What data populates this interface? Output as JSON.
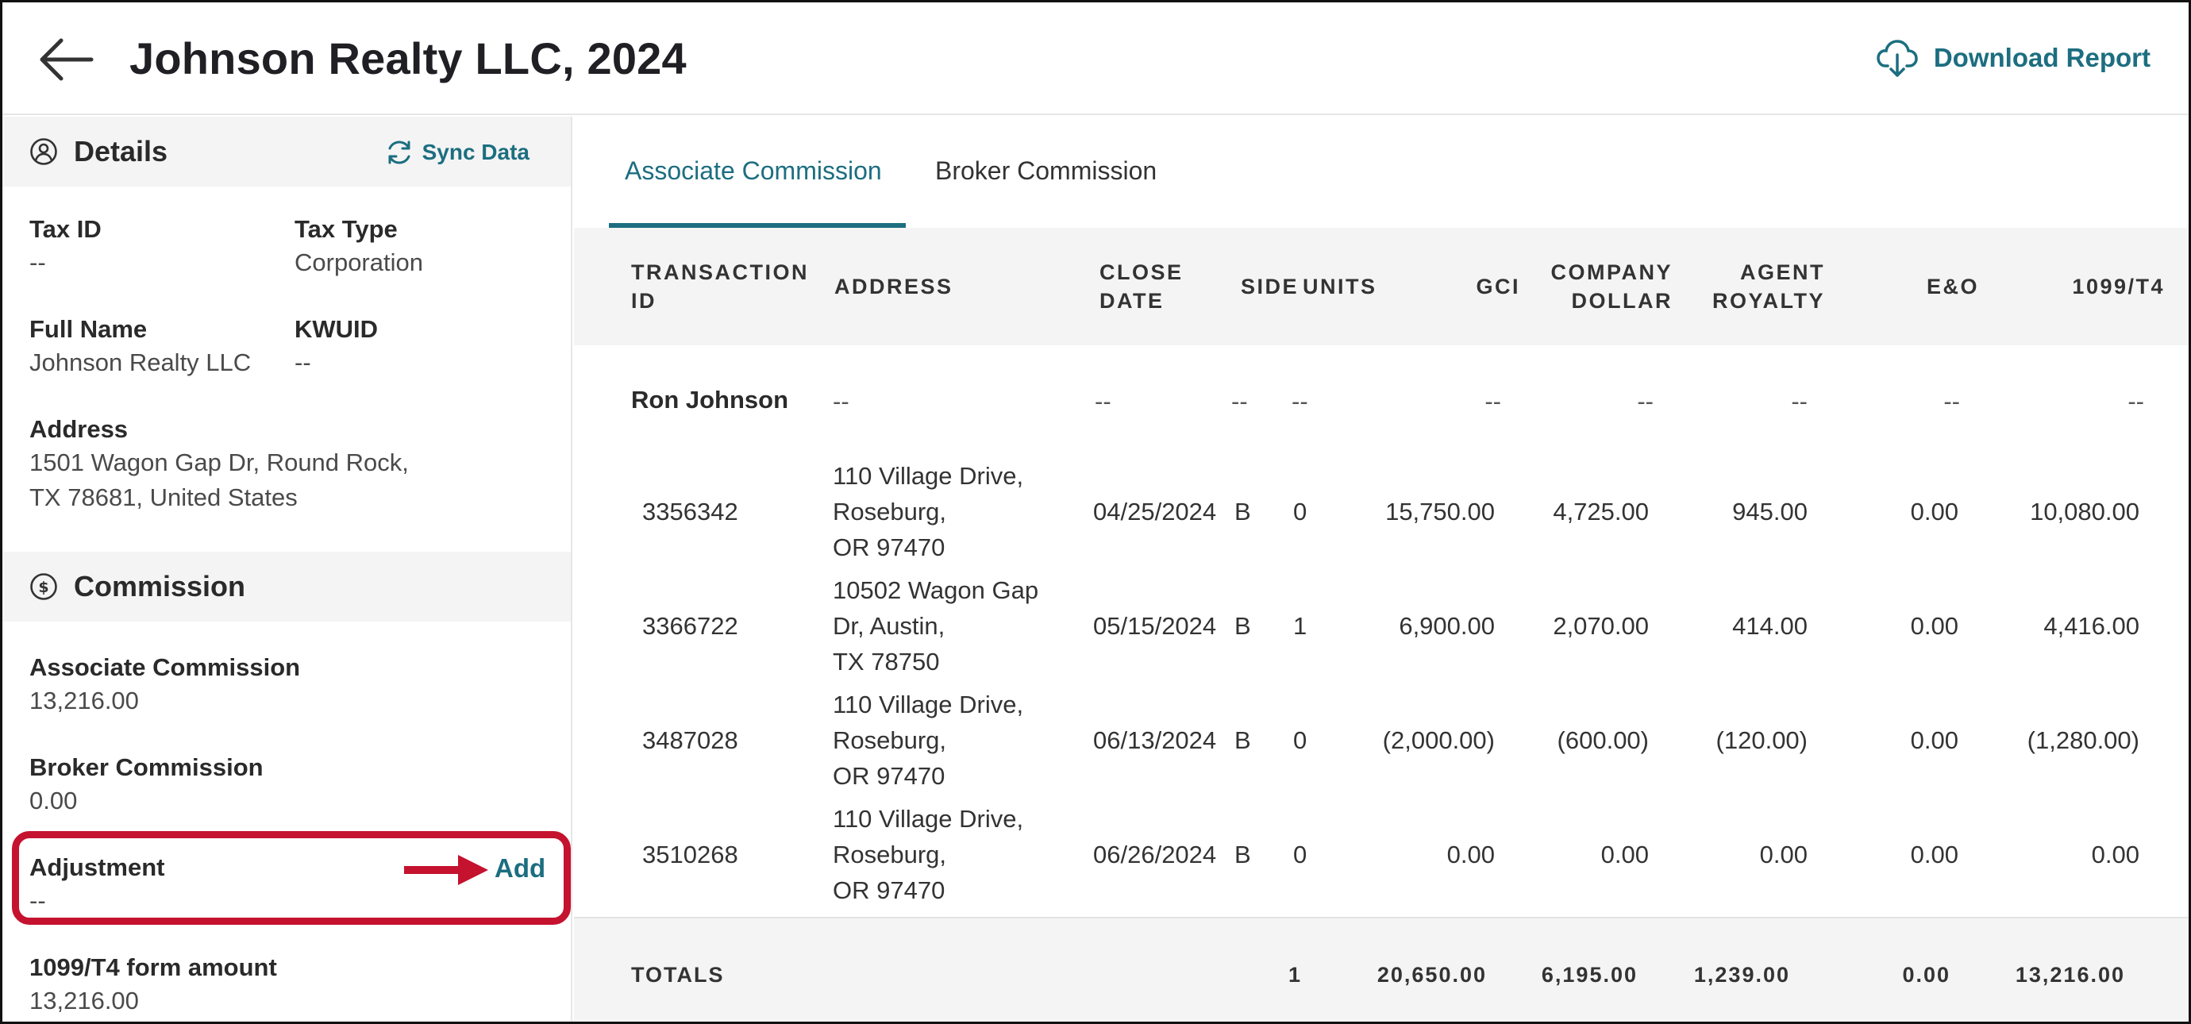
{
  "header": {
    "title": "Johnson Realty LLC, 2024",
    "download_label": "Download Report"
  },
  "sidebar": {
    "details_title": "Details",
    "sync_label": "Sync Data",
    "fields": {
      "tax_id": {
        "label": "Tax ID",
        "value": "--"
      },
      "tax_type": {
        "label": "Tax Type",
        "value": "Corporation"
      },
      "full_name": {
        "label": "Full Name",
        "value": "Johnson Realty LLC"
      },
      "kwuid": {
        "label": "KWUID",
        "value": "--"
      },
      "address": {
        "label": "Address",
        "line1": "1501 Wagon Gap Dr, Round Rock,",
        "line2": "TX 78681, United States"
      }
    },
    "commission_title": "Commission",
    "commission": {
      "associate": {
        "label": "Associate Commission",
        "value": "13,216.00"
      },
      "broker": {
        "label": "Broker Commission",
        "value": "0.00"
      },
      "adjustment": {
        "label": "Adjustment",
        "value": "--",
        "add_label": "Add"
      },
      "form_amount": {
        "label": "1099/T4 form amount",
        "value": "13,216.00"
      }
    }
  },
  "tabs": [
    {
      "label": "Associate Commission",
      "active": true
    },
    {
      "label": "Broker Commission",
      "active": false
    }
  ],
  "table": {
    "headers": {
      "transaction_id": [
        "TRANSACTION",
        "ID"
      ],
      "address": [
        "ADDRESS"
      ],
      "close_date": [
        "CLOSE",
        "DATE"
      ],
      "side": [
        "SIDE"
      ],
      "units": [
        "UNITS"
      ],
      "gci": [
        "GCI"
      ],
      "company_dollar": [
        "COMPANY",
        "DOLLAR"
      ],
      "agent_royalty": [
        "AGENT",
        "ROYALTY"
      ],
      "eo": [
        "E&O"
      ],
      "form": [
        "1099/T4"
      ]
    },
    "group": {
      "name": "Ron Johnson",
      "address": "--",
      "close_date": "--",
      "side": "--",
      "units": "--",
      "gci": "--",
      "company_dollar": "--",
      "agent_royalty": "--",
      "eo": "--",
      "form": "--"
    },
    "rows": [
      {
        "id": "3356342",
        "address": [
          "110 Village Drive,",
          "Roseburg,",
          "OR 97470"
        ],
        "close_date": "04/25/2024",
        "side": "B",
        "units": "0",
        "gci": "15,750.00",
        "company_dollar": "4,725.00",
        "agent_royalty": "945.00",
        "eo": "0.00",
        "form": "10,080.00"
      },
      {
        "id": "3366722",
        "address": [
          "10502 Wagon Gap",
          "Dr, Austin,",
          "TX 78750"
        ],
        "close_date": "05/15/2024",
        "side": "B",
        "units": "1",
        "gci": "6,900.00",
        "company_dollar": "2,070.00",
        "agent_royalty": "414.00",
        "eo": "0.00",
        "form": "4,416.00"
      },
      {
        "id": "3487028",
        "address": [
          "110 Village Drive,",
          "Roseburg,",
          "OR 97470"
        ],
        "close_date": "06/13/2024",
        "side": "B",
        "units": "0",
        "gci": "(2,000.00)",
        "company_dollar": "(600.00)",
        "agent_royalty": "(120.00)",
        "eo": "0.00",
        "form": "(1,280.00)"
      },
      {
        "id": "3510268",
        "address": [
          "110 Village Drive,",
          "Roseburg,",
          "OR 97470"
        ],
        "close_date": "06/26/2024",
        "side": "B",
        "units": "0",
        "gci": "0.00",
        "company_dollar": "0.00",
        "agent_royalty": "0.00",
        "eo": "0.00",
        "form": "0.00"
      }
    ],
    "totals": {
      "label": "TOTALS",
      "units": "1",
      "gci": "20,650.00",
      "company_dollar": "6,195.00",
      "agent_royalty": "1,239.00",
      "eo": "0.00",
      "form": "13,216.00"
    }
  },
  "colors": {
    "accent": "#1c6e80",
    "highlight": "#c4122f",
    "section_bg": "#f4f4f4"
  },
  "icons": [
    "back-arrow-icon",
    "cloud-download-icon",
    "user-circle-icon",
    "sync-icon",
    "dollar-circle-icon",
    "red-arrow-icon"
  ]
}
